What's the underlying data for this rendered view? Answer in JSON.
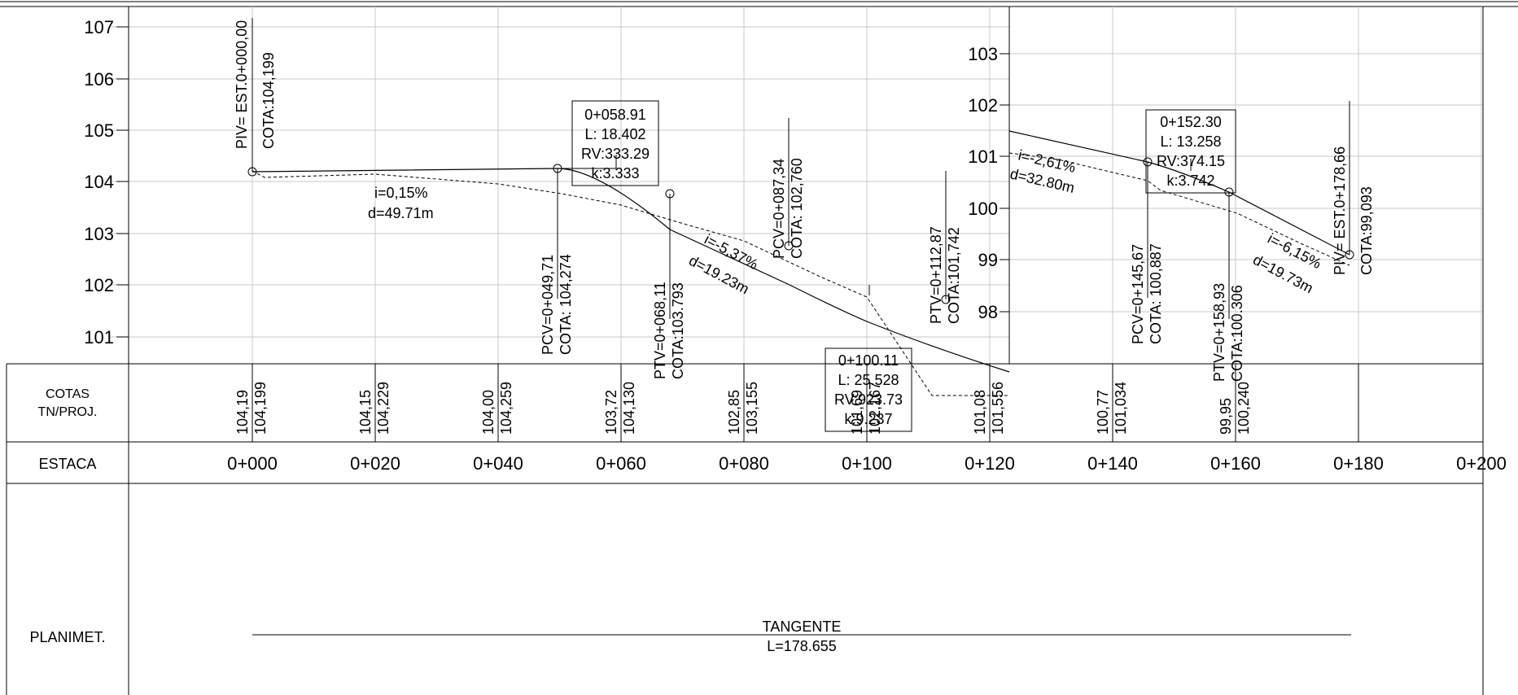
{
  "left_axis": {
    "ticks": [
      "107",
      "106",
      "105",
      "104",
      "103",
      "102",
      "101"
    ]
  },
  "right_axis": {
    "ticks": [
      "103",
      "102",
      "101",
      "100",
      "99",
      "98"
    ]
  },
  "stations": {
    "labels": [
      "0+000",
      "0+020",
      "0+040",
      "0+060",
      "0+080",
      "0+100",
      "0+120",
      "0+140",
      "0+160",
      "0+180",
      "0+200"
    ]
  },
  "bands": {
    "cotas_label": [
      "COTAS",
      "TN/PROJ."
    ],
    "estaca_label": "ESTACA",
    "planimet_label": "PLANIMET."
  },
  "cotas": [
    {
      "tn": "104,19",
      "proj": "104,199"
    },
    {
      "tn": "104,15",
      "proj": "104,229"
    },
    {
      "tn": "104,00",
      "proj": "104,259"
    },
    {
      "tn": "103,72",
      "proj": "104,130"
    },
    {
      "tn": "102,85",
      "proj": "103,155"
    },
    {
      "tn": "101,69",
      "proj": "102,167"
    },
    {
      "tn": "101,08",
      "proj": "101,556"
    },
    {
      "tn": "100,77",
      "proj": "101,034"
    },
    {
      "tn": "99,95",
      "proj": "100,240"
    }
  ],
  "planimetry": {
    "title": "TANGENTE",
    "length": "L=178.655"
  },
  "vertical_curves": [
    {
      "station": "0+058.91",
      "L": "L: 18.402",
      "RV": "RV:333.29",
      "k": "k:3.333"
    },
    {
      "station": "0+100.11",
      "L": "L: 25.528",
      "RV": "RV:923.73",
      "k": "k:9.237"
    },
    {
      "station": "0+152.30",
      "L": "L: 13.258",
      "RV": "RV:374.15",
      "k": "k:3.742"
    }
  ],
  "points": [
    {
      "name": "PIV= EST.0+000,00",
      "cota": "COTA:104,199"
    },
    {
      "name": "PCV=0+049,71",
      "cota": "COTA: 104,274"
    },
    {
      "name": "PTV=0+068,11",
      "cota": "COTA:103.793"
    },
    {
      "name": "PCV=0+087,34",
      "cota": "COTA: 102,760"
    },
    {
      "name": "PTV=0+112,87",
      "cota": "COTA:101,742"
    },
    {
      "name": "PCV=0+145,67",
      "cota": "COTA: 100,887"
    },
    {
      "name": "PTV=0+158,93",
      "cota": "COTA:100.306"
    },
    {
      "name": "PIV= EST.0+178,66",
      "cota": "COTA:99,093"
    }
  ],
  "grades": [
    {
      "i": "i=0,15%",
      "d": "d=49.71m"
    },
    {
      "i": "i=-5,37%",
      "d": "d=19.23m"
    },
    {
      "i": "i=-2,61%",
      "d": "d=32.80m"
    },
    {
      "i": "i=-6,15%",
      "d": "d=19.73m"
    }
  ],
  "chart_data": {
    "type": "line",
    "series": [
      {
        "name": "",
        "x": [
          0,
          20,
          40,
          60,
          80,
          100,
          120,
          140,
          160
        ],
        "values": [
          104.199,
          104.229,
          104.259,
          104.13,
          103.155,
          102.167,
          101.556,
          101.034,
          100.24
        ]
      },
      {
        "name": "",
        "x": [
          0,
          20,
          40,
          60,
          80,
          100,
          120,
          140,
          160
        ],
        "values": [
          104.19,
          104.15,
          104.0,
          103.72,
          102.85,
          101.69,
          101.08,
          100.77,
          99.95
        ]
      }
    ],
    "piv_points": [
      {
        "x": 0,
        "y": 104.199
      },
      {
        "x": 49.71,
        "y": 104.274
      },
      {
        "x": 68.11,
        "y": 103.793
      },
      {
        "x": 87.34,
        "y": 102.76
      },
      {
        "x": 112.87,
        "y": 101.742
      },
      {
        "x": 145.67,
        "y": 100.887
      },
      {
        "x": 158.93,
        "y": 100.306
      },
      {
        "x": 178.66,
        "y": 99.093
      }
    ],
    "grid": true
  }
}
